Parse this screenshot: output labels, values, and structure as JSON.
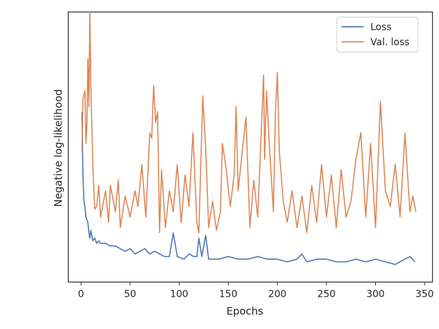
{
  "chart_data": {
    "type": "line",
    "xlabel": "Epochs",
    "ylabel": "Negative log-likelihood",
    "xlim": [
      -13,
      358
    ],
    "ylim": [
      0.0,
      1.0
    ],
    "xticks": [
      0,
      50,
      100,
      150,
      200,
      250,
      300,
      350
    ],
    "yticks_shown": false,
    "grid": false,
    "legend_position": "top-right",
    "series": [
      {
        "name": "Loss",
        "color": "#4c72b0",
        "x": [
          1,
          2,
          3,
          4,
          5,
          6,
          7,
          8,
          9,
          10,
          12,
          14,
          16,
          18,
          20,
          25,
          30,
          35,
          40,
          45,
          50,
          55,
          60,
          65,
          70,
          75,
          80,
          85,
          90,
          94,
          98,
          105,
          110,
          115,
          118,
          120,
          123,
          127,
          130,
          140,
          150,
          160,
          170,
          180,
          190,
          200,
          210,
          220,
          225,
          230,
          240,
          250,
          260,
          270,
          280,
          290,
          300,
          310,
          320,
          330,
          335,
          340
        ],
        "values": [
          0.6,
          0.35,
          0.26,
          0.24,
          0.2,
          0.19,
          0.18,
          0.14,
          0.12,
          0.15,
          0.11,
          0.12,
          0.1,
          0.11,
          0.1,
          0.1,
          0.09,
          0.09,
          0.08,
          0.07,
          0.08,
          0.06,
          0.07,
          0.08,
          0.06,
          0.07,
          0.06,
          0.05,
          0.05,
          0.14,
          0.05,
          0.04,
          0.06,
          0.05,
          0.05,
          0.12,
          0.05,
          0.13,
          0.04,
          0.04,
          0.05,
          0.04,
          0.04,
          0.05,
          0.04,
          0.04,
          0.03,
          0.04,
          0.06,
          0.03,
          0.04,
          0.04,
          0.03,
          0.03,
          0.04,
          0.03,
          0.04,
          0.03,
          0.02,
          0.04,
          0.05,
          0.03
        ]
      },
      {
        "name": "Val. loss",
        "color": "#dd8452",
        "x": [
          1,
          2,
          4,
          5,
          6,
          7,
          8,
          9,
          10,
          12,
          14,
          16,
          18,
          20,
          25,
          28,
          30,
          35,
          38,
          40,
          45,
          50,
          55,
          58,
          62,
          66,
          70,
          72,
          74,
          76,
          78,
          80,
          82,
          86,
          90,
          94,
          98,
          102,
          106,
          110,
          114,
          118,
          120,
          124,
          127,
          130,
          134,
          138,
          142,
          144,
          148,
          152,
          156,
          158,
          160,
          164,
          168,
          172,
          176,
          180,
          186,
          187,
          189,
          192,
          196,
          198,
          200,
          202,
          206,
          210,
          215,
          220,
          225,
          230,
          235,
          240,
          245,
          250,
          255,
          260,
          265,
          270,
          275,
          280,
          285,
          290,
          295,
          300,
          305,
          310,
          315,
          320,
          325,
          330,
          335,
          338,
          341
        ],
        "values": [
          0.45,
          0.65,
          0.68,
          0.48,
          0.55,
          0.8,
          0.62,
          0.98,
          0.7,
          0.4,
          0.23,
          0.24,
          0.32,
          0.2,
          0.3,
          0.18,
          0.32,
          0.22,
          0.34,
          0.16,
          0.28,
          0.2,
          0.3,
          0.24,
          0.4,
          0.2,
          0.52,
          0.5,
          0.7,
          0.56,
          0.6,
          0.14,
          0.38,
          0.16,
          0.3,
          0.22,
          0.4,
          0.18,
          0.36,
          0.24,
          0.52,
          0.18,
          0.14,
          0.66,
          0.46,
          0.16,
          0.26,
          0.15,
          0.22,
          0.48,
          0.38,
          0.24,
          0.36,
          0.62,
          0.3,
          0.44,
          0.58,
          0.16,
          0.34,
          0.2,
          0.74,
          0.42,
          0.68,
          0.46,
          0.22,
          0.6,
          0.75,
          0.45,
          0.26,
          0.18,
          0.3,
          0.16,
          0.28,
          0.14,
          0.32,
          0.18,
          0.4,
          0.2,
          0.36,
          0.16,
          0.38,
          0.2,
          0.26,
          0.42,
          0.52,
          0.2,
          0.48,
          0.16,
          0.64,
          0.3,
          0.24,
          0.4,
          0.2,
          0.52,
          0.22,
          0.28,
          0.22
        ]
      }
    ]
  }
}
